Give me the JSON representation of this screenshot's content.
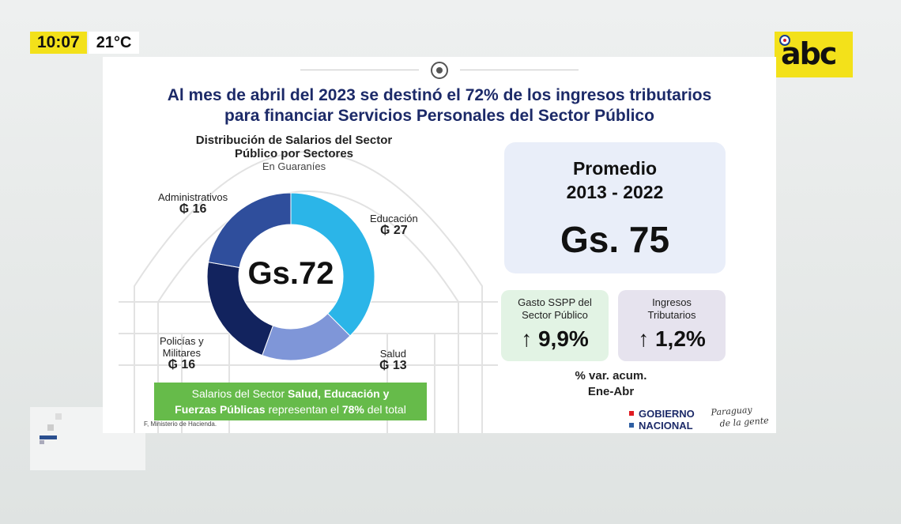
{
  "overlay": {
    "time": "10:07",
    "temperature": "21°C",
    "logo": "abc"
  },
  "slide": {
    "headline_line1": "Al mes de abril del 2023 se destinó el 72% de los ingresos tributarios",
    "headline_line2": "para financiar Servicios Personales del Sector Público",
    "footer_text_parts": [
      "Salarios del Sector ",
      "Salud, Educación y",
      "Fuerzas Públicas",
      " representan el ",
      "78%",
      " del total"
    ],
    "source": "F, Ministerio de Hacienda.",
    "logo_line1": "GOBIERNO",
    "logo_line2": "NACIONAL",
    "signature_line1": "Paraguay",
    "signature_line2": "de la gente"
  },
  "chart_data": [
    {
      "type": "pie",
      "subtype": "donut",
      "title_line1": "Distribución de Salarios del Sector",
      "title_line2": "Público por Sectores",
      "subtitle": "En Guaraníes",
      "center_label": "Gs.72",
      "currency_symbol": "₲",
      "segments": [
        {
          "name": "Educación",
          "value": 27,
          "color": "#2bb5e8"
        },
        {
          "name": "Salud",
          "value": 13,
          "color": "#7f96d8"
        },
        {
          "name": "Policías y Militares",
          "name_line1": "Policías y",
          "name_line2": "Militares",
          "value": 16,
          "color": "#12235e"
        },
        {
          "name": "Administrativos",
          "value": 16,
          "color": "#2f4e9c"
        }
      ]
    }
  ],
  "kpis": {
    "average_title_line1": "Promedio",
    "average_title_line2": "2013 - 2022",
    "average_value": "Gs. 75",
    "gasto_label_line1": "Gasto SSPP del",
    "gasto_label_line2": "Sector Público",
    "gasto_value": "↑ 9,9%",
    "ingresos_label_line1": "Ingresos",
    "ingresos_label_line2": "Tributarios",
    "ingresos_value": "↑ 1,2%",
    "var_label_line1": "% var. acum.",
    "var_label_line2": "Ene-Abr"
  },
  "colors": {
    "accent_yellow": "#f3e11a",
    "headline_navy": "#1c2a68",
    "footer_green": "#66bb4a",
    "flag_red": "#e01b22",
    "flag_blue": "#2f5fa3"
  }
}
